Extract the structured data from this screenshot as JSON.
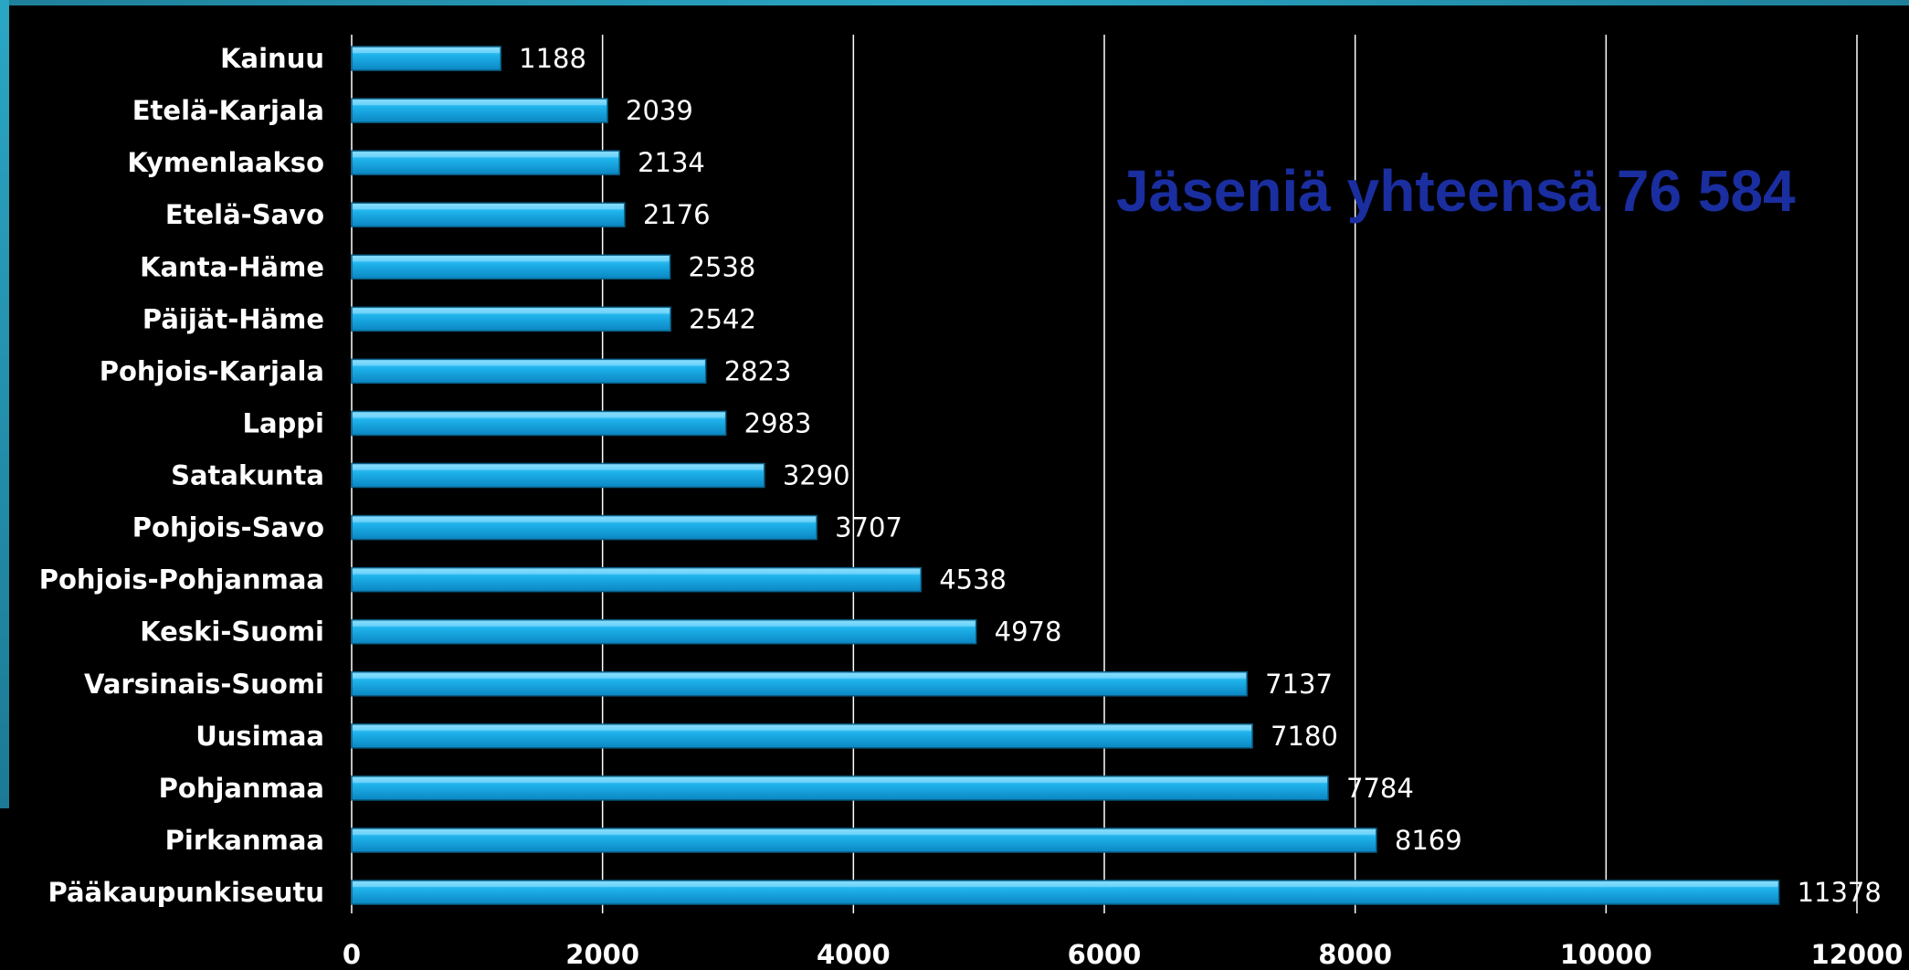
{
  "annotation": "Jäseniä yhteensä 76 584",
  "chart_data": {
    "type": "bar",
    "orientation": "horizontal",
    "categories": [
      "Kainuu",
      "Etelä-Karjala",
      "Kymenlaakso",
      "Etelä-Savo",
      "Kanta-Häme",
      "Päijät-Häme",
      "Pohjois-Karjala",
      "Lappi",
      "Satakunta",
      "Pohjois-Savo",
      "Pohjois-Pohjanmaa",
      "Keski-Suomi",
      "Varsinais-Suomi",
      "Uusimaa",
      "Pohjanmaa",
      "Pirkanmaa",
      "Pääkaupunkiseutu"
    ],
    "values": [
      1188,
      2039,
      2134,
      2176,
      2538,
      2542,
      2823,
      2983,
      3290,
      3707,
      4538,
      4978,
      7137,
      7180,
      7784,
      8169,
      11378
    ],
    "xlim": [
      0,
      12000
    ],
    "xticks": [
      0,
      2000,
      4000,
      6000,
      8000,
      10000,
      12000
    ],
    "grid": "vertical",
    "legend": "none",
    "colors": {
      "bar_fill": "#1aa6e0",
      "bar_highlight": "#8fe0ff",
      "bar_edge": "#0b5f86",
      "gridline": "#ffffff",
      "text": "#ffffff",
      "annotation": "#1a2ea0",
      "background": "#000000"
    }
  }
}
